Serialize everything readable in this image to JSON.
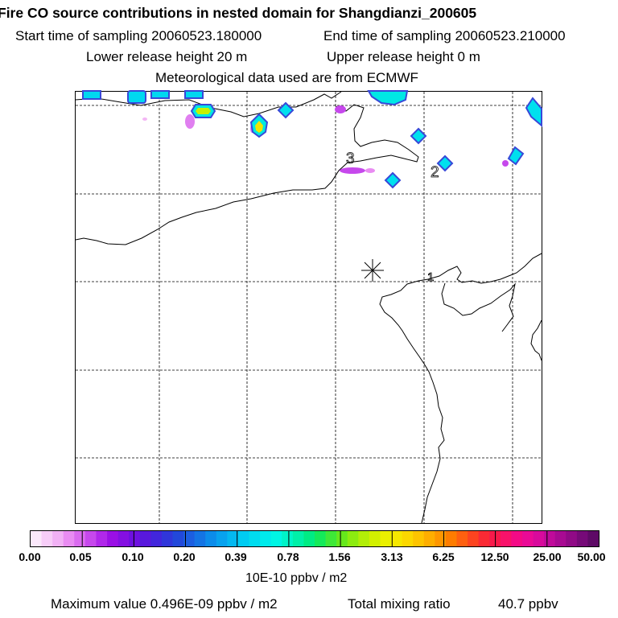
{
  "header": {
    "title": "Fire CO source contributions in nested domain for Shangdianzi_200605",
    "start_label": "Start time of sampling 20060523.180000",
    "end_label": "End time of sampling 20060523.210000",
    "lower_label": "Lower release height   20 m",
    "upper_label": "Upper release height    0 m",
    "met_label": "Meteorological data used are from ECMWF"
  },
  "map": {
    "receptor_symbol": "asterisk",
    "labels": [
      "3",
      "2",
      "1"
    ]
  },
  "colorbar": {
    "ticks": [
      "0.00",
      "0.05",
      "0.10",
      "0.20",
      "0.39",
      "0.78",
      "1.56",
      "3.13",
      "6.25",
      "12.50",
      "25.00",
      "50.00"
    ],
    "unit": "10E-10 ppbv / m2",
    "colors": [
      "#fbe8fb",
      "#f7cdf8",
      "#f1b1f5",
      "#e98cf2",
      "#da6bef",
      "#c648ec",
      "#b028ea",
      "#9a10e5",
      "#8410e2",
      "#6e10e0",
      "#5818dd",
      "#4226dc",
      "#3036da",
      "#2248da",
      "#1c5ee0",
      "#1474e4",
      "#0c8cea",
      "#08a2ee",
      "#04b8f0",
      "#00ccf2",
      "#00dcef",
      "#00ebec",
      "#00f6e4",
      "#00f4c8",
      "#00f0a8",
      "#00ec84",
      "#14ea5a",
      "#3ee838",
      "#66e81c",
      "#8cec10",
      "#b2ee08",
      "#d2f000",
      "#eaf000",
      "#f6e800",
      "#fcd800",
      "#fec400",
      "#feae00",
      "#fe9600",
      "#fe7c00",
      "#fe6010",
      "#fc4420",
      "#fa2a34",
      "#f81a4a",
      "#f8126a",
      "#f40a86",
      "#ea0a96",
      "#d80a9c",
      "#c00a9a",
      "#a80a92",
      "#900a86",
      "#760a78",
      "#5e0a66"
    ]
  },
  "footer": {
    "max_label": "Maximum value  0.496E-09 ppbv / m2",
    "total_label": "Total mixing ratio",
    "total_value": "40.7 ppbv"
  }
}
